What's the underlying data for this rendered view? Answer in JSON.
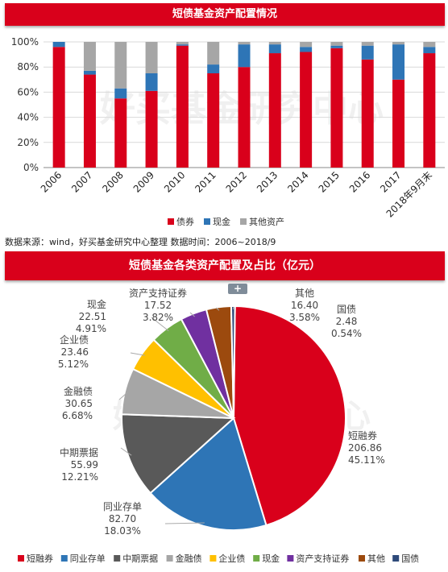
{
  "chart_title": "短债基金资产配置情况",
  "source_note": "数据来源：wind，好买基金研究中心整理   数据时间：2006~2018/9",
  "pie_title": "短债基金各类资产配置及占比（亿元）",
  "watermark": "好买基金研究中心",
  "expand_button": "+",
  "chart_data": [
    {
      "type": "bar",
      "stacked": true,
      "categories": [
        "2006",
        "2007",
        "2008",
        "2009",
        "2010",
        "2011",
        "2012",
        "2013",
        "2014",
        "2015",
        "2016",
        "2017",
        "2018年9月末"
      ],
      "series": [
        {
          "name": "债券",
          "color": "#d9001b",
          "values": [
            96,
            74,
            55,
            61,
            97,
            75,
            80,
            91,
            92,
            95,
            86,
            70,
            91
          ]
        },
        {
          "name": "现金",
          "color": "#2e75b6",
          "values": [
            4,
            3,
            8,
            14,
            1,
            7,
            18,
            7,
            4,
            2,
            11,
            28,
            5
          ]
        },
        {
          "name": "其他资产",
          "color": "#a6a6a6",
          "values": [
            0,
            23,
            37,
            25,
            2,
            18,
            2,
            2,
            4,
            3,
            3,
            2,
            4
          ]
        }
      ],
      "y_ticks": [
        "0%",
        "20%",
        "40%",
        "60%",
        "80%",
        "100%"
      ],
      "ylim": [
        0,
        100
      ],
      "legend_position": "bottom",
      "grid": true
    },
    {
      "type": "pie",
      "slices": [
        {
          "label": "短融券",
          "value": 206.86,
          "percent": "45.11%",
          "color": "#d9001b"
        },
        {
          "label": "同业存单",
          "value": 82.7,
          "percent": "18.03%",
          "color": "#2e75b6"
        },
        {
          "label": "中期票据",
          "value": 55.99,
          "percent": "12.21%",
          "color": "#595959"
        },
        {
          "label": "金融债",
          "value": 30.65,
          "percent": "6.68%",
          "color": "#a6a6a6"
        },
        {
          "label": "企业债",
          "value": 23.46,
          "percent": "5.12%",
          "color": "#ffc000"
        },
        {
          "label": "现金",
          "value": 22.51,
          "percent": "4.91%",
          "color": "#70ad47"
        },
        {
          "label": "资产支持证券",
          "value": 17.52,
          "percent": "3.82%",
          "color": "#7030a0"
        },
        {
          "label": "其他",
          "value": 16.4,
          "percent": "3.58%",
          "color": "#9c4a0e"
        },
        {
          "label": "国债",
          "value": 2.48,
          "percent": "0.54%",
          "color": "#2e4a7a"
        }
      ],
      "legend_position": "bottom"
    }
  ]
}
